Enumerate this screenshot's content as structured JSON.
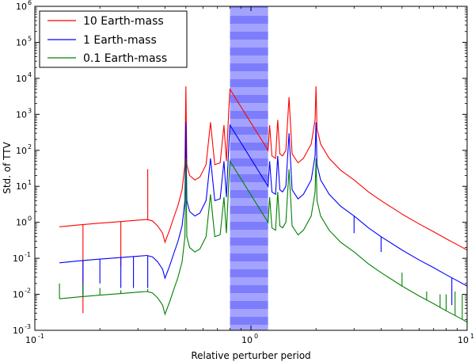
{
  "chart_data": {
    "type": "line",
    "xlabel": "Relative perturber period",
    "ylabel": "Std. of TTV",
    "x_scale": "log",
    "y_scale": "log",
    "xlim": [
      0.1,
      10
    ],
    "ylim": [
      0.001,
      1000000
    ],
    "x_ticks": [
      {
        "base": "10",
        "exp": "-1",
        "value": 0.1
      },
      {
        "base": "10",
        "exp": "0",
        "value": 1
      },
      {
        "base": "10",
        "exp": "1",
        "value": 10
      }
    ],
    "y_ticks": [
      {
        "base": "10",
        "exp": "-3",
        "value": 0.001
      },
      {
        "base": "10",
        "exp": "-2",
        "value": 0.01
      },
      {
        "base": "10",
        "exp": "-1",
        "value": 0.1
      },
      {
        "base": "10",
        "exp": "0",
        "value": 1
      },
      {
        "base": "10",
        "exp": "1",
        "value": 10
      },
      {
        "base": "10",
        "exp": "2",
        "value": 100
      },
      {
        "base": "10",
        "exp": "3",
        "value": 1000
      },
      {
        "base": "10",
        "exp": "4",
        "value": 10000
      },
      {
        "base": "10",
        "exp": "5",
        "value": 100000
      },
      {
        "base": "10",
        "exp": "6",
        "value": 1000000
      }
    ],
    "shaded_region": {
      "x_range": [
        0.8,
        1.2
      ],
      "color": "#8080ff",
      "note": "excluded near-unity periods"
    },
    "legend_position": "upper-left",
    "series": [
      {
        "name": "10 Earth-mass",
        "color": "#ff0000",
        "points": [
          [
            0.13,
            0.75
          ],
          [
            0.16,
            0.85
          ],
          [
            0.2,
            0.95
          ],
          [
            0.25,
            1.05
          ],
          [
            0.3,
            1.15
          ],
          [
            0.33,
            1.2
          ],
          [
            0.35,
            1.1
          ],
          [
            0.37,
            0.8
          ],
          [
            0.39,
            0.5
          ],
          [
            0.4,
            0.28
          ],
          [
            0.42,
            0.6
          ],
          [
            0.44,
            1.4
          ],
          [
            0.46,
            3
          ],
          [
            0.48,
            8
          ],
          [
            0.495,
            40
          ],
          [
            0.5,
            6000
          ],
          [
            0.505,
            40
          ],
          [
            0.52,
            20
          ],
          [
            0.55,
            15
          ],
          [
            0.58,
            18
          ],
          [
            0.62,
            40
          ],
          [
            0.65,
            600
          ],
          [
            0.68,
            40
          ],
          [
            0.72,
            45
          ],
          [
            0.75,
            500
          ],
          [
            0.77,
            50
          ],
          [
            0.79,
            1500
          ],
          [
            0.8,
            5000
          ],
          [
            1.2,
            100
          ],
          [
            1.22,
            500
          ],
          [
            1.25,
            70
          ],
          [
            1.3,
            60
          ],
          [
            1.33,
            700
          ],
          [
            1.36,
            80
          ],
          [
            1.4,
            70
          ],
          [
            1.45,
            100
          ],
          [
            1.5,
            3000
          ],
          [
            1.55,
            80
          ],
          [
            1.65,
            45
          ],
          [
            1.75,
            60
          ],
          [
            1.9,
            150
          ],
          [
            1.98,
            700
          ],
          [
            2.0,
            6000
          ],
          [
            2.02,
            400
          ],
          [
            2.1,
            150
          ],
          [
            2.3,
            60
          ],
          [
            2.6,
            28
          ],
          [
            3.0,
            15
          ],
          [
            3.5,
            7
          ],
          [
            4.0,
            4
          ],
          [
            5.0,
            1.7
          ],
          [
            6.0,
            0.9
          ],
          [
            7.0,
            0.55
          ],
          [
            8.0,
            0.35
          ],
          [
            9.0,
            0.24
          ],
          [
            10.0,
            0.17
          ]
        ],
        "spikes": [
          [
            0.167,
            0.003
          ],
          [
            0.25,
            0.06
          ],
          [
            0.333,
            30
          ]
        ]
      },
      {
        "name": "1 Earth-mass",
        "color": "#0000ff",
        "points": [
          [
            0.13,
            0.075
          ],
          [
            0.16,
            0.085
          ],
          [
            0.2,
            0.095
          ],
          [
            0.25,
            0.105
          ],
          [
            0.3,
            0.115
          ],
          [
            0.33,
            0.12
          ],
          [
            0.35,
            0.11
          ],
          [
            0.37,
            0.08
          ],
          [
            0.39,
            0.05
          ],
          [
            0.4,
            0.028
          ],
          [
            0.42,
            0.06
          ],
          [
            0.44,
            0.14
          ],
          [
            0.46,
            0.3
          ],
          [
            0.48,
            0.8
          ],
          [
            0.495,
            4
          ],
          [
            0.5,
            600
          ],
          [
            0.505,
            4
          ],
          [
            0.52,
            2
          ],
          [
            0.55,
            1.5
          ],
          [
            0.58,
            1.8
          ],
          [
            0.62,
            4
          ],
          [
            0.65,
            60
          ],
          [
            0.68,
            4
          ],
          [
            0.72,
            4.5
          ],
          [
            0.75,
            50
          ],
          [
            0.77,
            5
          ],
          [
            0.79,
            150
          ],
          [
            0.8,
            500
          ],
          [
            1.2,
            10
          ],
          [
            1.22,
            50
          ],
          [
            1.25,
            7
          ],
          [
            1.3,
            6
          ],
          [
            1.33,
            70
          ],
          [
            1.36,
            8
          ],
          [
            1.4,
            7
          ],
          [
            1.45,
            10
          ],
          [
            1.5,
            300
          ],
          [
            1.55,
            8
          ],
          [
            1.65,
            4.5
          ],
          [
            1.75,
            6
          ],
          [
            1.9,
            15
          ],
          [
            1.98,
            70
          ],
          [
            2.0,
            600
          ],
          [
            2.02,
            40
          ],
          [
            2.1,
            15
          ],
          [
            2.3,
            6
          ],
          [
            2.6,
            2.8
          ],
          [
            3.0,
            1.5
          ],
          [
            3.5,
            0.7
          ],
          [
            4.0,
            0.4
          ],
          [
            5.0,
            0.17
          ],
          [
            6.0,
            0.09
          ],
          [
            7.0,
            0.055
          ],
          [
            8.0,
            0.035
          ],
          [
            9.0,
            0.024
          ],
          [
            10.0,
            0.017
          ]
        ],
        "spikes": [
          [
            0.167,
            0.01
          ],
          [
            0.2,
            0.02
          ],
          [
            0.25,
            0.015
          ],
          [
            0.286,
            0.015
          ],
          [
            0.333,
            0.015
          ],
          [
            3.0,
            0.5
          ],
          [
            4.0,
            0.15
          ],
          [
            8.5,
            0.005
          ]
        ]
      },
      {
        "name": "0.1 Earth-mass",
        "color": "#008000",
        "points": [
          [
            0.13,
            0.0075
          ],
          [
            0.16,
            0.0085
          ],
          [
            0.2,
            0.0095
          ],
          [
            0.25,
            0.0105
          ],
          [
            0.3,
            0.0115
          ],
          [
            0.33,
            0.012
          ],
          [
            0.35,
            0.011
          ],
          [
            0.37,
            0.008
          ],
          [
            0.39,
            0.005
          ],
          [
            0.4,
            0.0028
          ],
          [
            0.42,
            0.006
          ],
          [
            0.44,
            0.014
          ],
          [
            0.46,
            0.03
          ],
          [
            0.48,
            0.08
          ],
          [
            0.495,
            0.4
          ],
          [
            0.5,
            60
          ],
          [
            0.505,
            0.4
          ],
          [
            0.52,
            0.2
          ],
          [
            0.55,
            0.15
          ],
          [
            0.58,
            0.18
          ],
          [
            0.62,
            0.4
          ],
          [
            0.65,
            6
          ],
          [
            0.68,
            0.4
          ],
          [
            0.72,
            0.45
          ],
          [
            0.75,
            5
          ],
          [
            0.77,
            0.5
          ],
          [
            0.79,
            15
          ],
          [
            0.8,
            50
          ],
          [
            1.2,
            1
          ],
          [
            1.22,
            5
          ],
          [
            1.25,
            0.7
          ],
          [
            1.3,
            0.6
          ],
          [
            1.33,
            7
          ],
          [
            1.36,
            0.8
          ],
          [
            1.4,
            0.7
          ],
          [
            1.45,
            1
          ],
          [
            1.5,
            30
          ],
          [
            1.55,
            0.8
          ],
          [
            1.65,
            0.45
          ],
          [
            1.75,
            0.6
          ],
          [
            1.9,
            1.5
          ],
          [
            1.98,
            7
          ],
          [
            2.0,
            60
          ],
          [
            2.02,
            4
          ],
          [
            2.1,
            1.5
          ],
          [
            2.3,
            0.6
          ],
          [
            2.6,
            0.28
          ],
          [
            3.0,
            0.15
          ],
          [
            3.5,
            0.07
          ],
          [
            4.0,
            0.04
          ],
          [
            5.0,
            0.017
          ],
          [
            6.0,
            0.009
          ],
          [
            7.0,
            0.0055
          ],
          [
            8.0,
            0.0035
          ],
          [
            9.0,
            0.0024
          ],
          [
            10.0,
            0.0017
          ]
        ],
        "spikes": [
          [
            0.13,
            0.02
          ],
          [
            0.167,
            0.02
          ],
          [
            0.2,
            0.015
          ],
          [
            0.25,
            0.013
          ],
          [
            0.333,
            0.014
          ],
          [
            5.0,
            0.04
          ],
          [
            6.5,
            0.012
          ],
          [
            7.5,
            0.01
          ],
          [
            8.0,
            0.01
          ],
          [
            8.8,
            0.012
          ],
          [
            9.5,
            0.01
          ]
        ]
      }
    ]
  }
}
